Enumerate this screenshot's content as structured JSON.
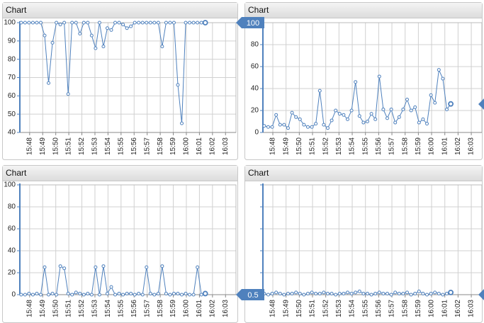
{
  "chart_data": [
    {
      "type": "line",
      "title": "Chart",
      "xlim": [
        947.25,
        963.8
      ],
      "ylim": [
        40,
        100
      ],
      "yticks": [
        40,
        50,
        60,
        70,
        80,
        90,
        100
      ],
      "tick_labels": true,
      "grid": true,
      "xticks": [
        {
          "value": 948,
          "label": "15:48"
        },
        {
          "value": 949,
          "label": "15:49"
        },
        {
          "value": 950,
          "label": "15:50"
        },
        {
          "value": 951,
          "label": "15:51"
        },
        {
          "value": 952,
          "label": "15:52"
        },
        {
          "value": 953,
          "label": "15:53"
        },
        {
          "value": 954,
          "label": "15:54"
        },
        {
          "value": 955,
          "label": "15:55"
        },
        {
          "value": 956,
          "label": "15:56"
        },
        {
          "value": 957,
          "label": "15:57"
        },
        {
          "value": 958,
          "label": "15:58"
        },
        {
          "value": 959,
          "label": "15:59"
        },
        {
          "value": 960,
          "label": "16:00"
        },
        {
          "value": 961,
          "label": "16:01"
        },
        {
          "value": 962,
          "label": "16:02"
        },
        {
          "value": 963,
          "label": "16:03"
        }
      ],
      "x": [
        947.35,
        947.65,
        947.95,
        948.25,
        948.55,
        948.85,
        949.15,
        949.45,
        949.75,
        950.05,
        950.35,
        950.65,
        950.95,
        951.25,
        951.55,
        951.85,
        952.15,
        952.45,
        952.75,
        953.05,
        953.35,
        953.65,
        953.95,
        954.25,
        954.55,
        954.85,
        955.15,
        955.45,
        955.75,
        956.05,
        956.35,
        956.65,
        956.95,
        957.25,
        957.55,
        957.85,
        958.15,
        958.45,
        958.75,
        959.05,
        959.35,
        959.65,
        959.95,
        960.25,
        960.55,
        960.85,
        961.15,
        961.45
      ],
      "series": [
        {
          "color": "#4f81bd",
          "values": [
            100,
            100,
            100,
            100,
            100,
            100,
            93,
            67,
            89,
            100,
            99,
            100,
            61,
            100,
            100,
            94,
            100,
            100,
            93,
            86,
            100,
            87,
            97,
            96,
            100,
            100,
            99,
            97,
            98,
            100,
            100,
            100,
            100,
            100,
            100,
            100,
            87,
            100,
            100,
            100,
            66,
            45,
            100,
            100,
            100,
            100,
            100,
            100
          ]
        }
      ]
    },
    {
      "type": "line",
      "title": "Chart",
      "xlim": [
        947.25,
        963.8
      ],
      "ylim": [
        0,
        100
      ],
      "yticks": [
        0,
        20,
        40,
        60,
        80,
        100
      ],
      "tick_labels": true,
      "grid": true,
      "xticks": [
        {
          "value": 948,
          "label": "15:48"
        },
        {
          "value": 949,
          "label": "15:49"
        },
        {
          "value": 950,
          "label": "15:50"
        },
        {
          "value": 951,
          "label": "15:51"
        },
        {
          "value": 952,
          "label": "15:52"
        },
        {
          "value": 953,
          "label": "15:53"
        },
        {
          "value": 954,
          "label": "15:54"
        },
        {
          "value": 955,
          "label": "15:55"
        },
        {
          "value": 956,
          "label": "15:56"
        },
        {
          "value": 957,
          "label": "15:57"
        },
        {
          "value": 958,
          "label": "15:58"
        },
        {
          "value": 959,
          "label": "15:59"
        },
        {
          "value": 960,
          "label": "16:00"
        },
        {
          "value": 961,
          "label": "16:01"
        },
        {
          "value": 962,
          "label": "16:02"
        },
        {
          "value": 963,
          "label": "16:03"
        }
      ],
      "x": [
        947.35,
        947.65,
        947.95,
        948.25,
        948.55,
        948.85,
        949.15,
        949.45,
        949.75,
        950.05,
        950.35,
        950.65,
        950.95,
        951.25,
        951.55,
        951.85,
        952.15,
        952.45,
        952.75,
        953.05,
        953.35,
        953.65,
        953.95,
        954.25,
        954.55,
        954.85,
        955.15,
        955.45,
        955.75,
        956.05,
        956.35,
        956.65,
        956.95,
        957.25,
        957.55,
        957.85,
        958.15,
        958.45,
        958.75,
        959.05,
        959.35,
        959.65,
        959.95,
        960.25,
        960.55,
        960.85,
        961.15,
        961.45
      ],
      "series": [
        {
          "color": "#4f81bd",
          "values": [
            6,
            5,
            5,
            16,
            7,
            7,
            4,
            18,
            14,
            12,
            7,
            5,
            5,
            8,
            38,
            7,
            4,
            11,
            20,
            17,
            16,
            12,
            20,
            46,
            15,
            9,
            10,
            17,
            12,
            51,
            21,
            13,
            21,
            9,
            14,
            21,
            30,
            20,
            23,
            9,
            12,
            8,
            34,
            27,
            57,
            49,
            21,
            26
          ]
        }
      ]
    },
    {
      "type": "line",
      "title": "Chart",
      "xlim": [
        947.25,
        963.8
      ],
      "ylim": [
        0,
        100
      ],
      "yticks": [
        0,
        20,
        40,
        60,
        80,
        100
      ],
      "tick_labels": true,
      "grid": true,
      "xticks": [
        {
          "value": 948,
          "label": "15:48"
        },
        {
          "value": 949,
          "label": "15:49"
        },
        {
          "value": 950,
          "label": "15:50"
        },
        {
          "value": 951,
          "label": "15:51"
        },
        {
          "value": 952,
          "label": "15:52"
        },
        {
          "value": 953,
          "label": "15:53"
        },
        {
          "value": 954,
          "label": "15:54"
        },
        {
          "value": 955,
          "label": "15:55"
        },
        {
          "value": 956,
          "label": "15:56"
        },
        {
          "value": 957,
          "label": "15:57"
        },
        {
          "value": 958,
          "label": "15:58"
        },
        {
          "value": 959,
          "label": "15:59"
        },
        {
          "value": 960,
          "label": "16:00"
        },
        {
          "value": 961,
          "label": "16:01"
        },
        {
          "value": 962,
          "label": "16:02"
        },
        {
          "value": 963,
          "label": "16:03"
        }
      ],
      "x": [
        947.35,
        947.65,
        947.95,
        948.25,
        948.55,
        948.85,
        949.15,
        949.45,
        949.75,
        950.05,
        950.35,
        950.65,
        950.95,
        951.25,
        951.55,
        951.85,
        952.15,
        952.45,
        952.75,
        953.05,
        953.35,
        953.65,
        953.95,
        954.25,
        954.55,
        954.85,
        955.15,
        955.45,
        955.75,
        956.05,
        956.35,
        956.65,
        956.95,
        957.25,
        957.55,
        957.85,
        958.15,
        958.45,
        958.75,
        959.05,
        959.35,
        959.65,
        959.95,
        960.25,
        960.55,
        960.85,
        961.15,
        961.45
      ],
      "series": [
        {
          "color": "#4f81bd",
          "values": [
            0,
            0,
            1,
            0,
            1,
            0,
            25,
            0,
            1,
            0,
            26,
            24,
            1,
            0,
            2,
            1,
            0,
            1,
            0,
            25,
            0,
            26,
            1,
            7,
            0,
            1,
            0,
            1,
            1,
            0,
            1,
            0,
            25,
            1,
            0,
            1,
            26,
            1,
            0,
            1,
            1,
            0,
            1,
            0,
            0,
            25,
            0,
            1
          ]
        }
      ]
    },
    {
      "type": "line",
      "title": "Chart",
      "xlim": [
        947.25,
        963.8
      ],
      "ylim": [
        0,
        100
      ],
      "yticks": [
        0,
        20,
        40,
        60,
        80,
        100
      ],
      "tick_labels": false,
      "grid": true,
      "xticks": [
        {
          "value": 948,
          "label": "15:48"
        },
        {
          "value": 949,
          "label": "15:49"
        },
        {
          "value": 950,
          "label": "15:50"
        },
        {
          "value": 951,
          "label": "15:51"
        },
        {
          "value": 952,
          "label": "15:52"
        },
        {
          "value": 953,
          "label": "15:53"
        },
        {
          "value": 954,
          "label": "15:54"
        },
        {
          "value": 955,
          "label": "15:55"
        },
        {
          "value": 956,
          "label": "15:56"
        },
        {
          "value": 957,
          "label": "15:57"
        },
        {
          "value": 958,
          "label": "15:58"
        },
        {
          "value": 959,
          "label": "15:59"
        },
        {
          "value": 960,
          "label": "16:00"
        },
        {
          "value": 961,
          "label": "16:01"
        },
        {
          "value": 962,
          "label": "16:02"
        },
        {
          "value": 963,
          "label": "16:03"
        }
      ],
      "x": [
        947.35,
        947.65,
        947.95,
        948.25,
        948.55,
        948.85,
        949.15,
        949.45,
        949.75,
        950.05,
        950.35,
        950.65,
        950.95,
        951.25,
        951.55,
        951.85,
        952.15,
        952.45,
        952.75,
        953.05,
        953.35,
        953.65,
        953.95,
        954.25,
        954.55,
        954.85,
        955.15,
        955.45,
        955.75,
        956.05,
        956.35,
        956.65,
        956.95,
        957.25,
        957.55,
        957.85,
        958.15,
        958.45,
        958.75,
        959.05,
        959.35,
        959.65,
        959.95,
        960.25,
        960.55,
        960.85,
        961.15,
        961.45
      ],
      "series": [
        {
          "color": "#4f81bd",
          "values": [
            1,
            0,
            1,
            2,
            1,
            0,
            1,
            1,
            2,
            1,
            0,
            1,
            2,
            1,
            1,
            2,
            1,
            1,
            0,
            1,
            1,
            2,
            1,
            2,
            3,
            1,
            1,
            0,
            1,
            2,
            1,
            1,
            0,
            2,
            1,
            1,
            2,
            0,
            1,
            3,
            1,
            0,
            1,
            2,
            1,
            0,
            1,
            2
          ]
        }
      ]
    }
  ],
  "crosshair_labels": [
    "100",
    "0.5"
  ]
}
